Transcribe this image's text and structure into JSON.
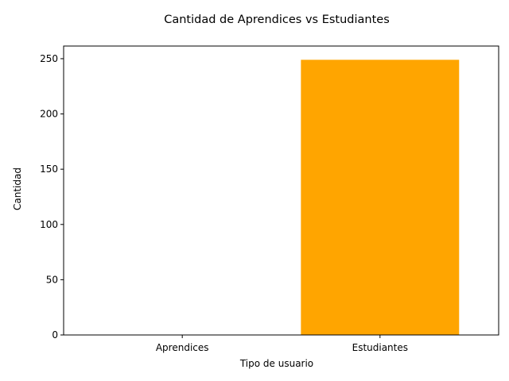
{
  "chart_data": {
    "type": "bar",
    "title": "Cantidad de Aprendices vs Estudiantes",
    "xlabel": "Tipo de usuario",
    "ylabel": "Cantidad",
    "categories": [
      "Aprendices",
      "Estudiantes"
    ],
    "values": [
      0,
      249
    ],
    "bar_color": "#FFA500",
    "ylim": [
      0,
      261.45
    ],
    "yticks": [
      0,
      50,
      100,
      150,
      200,
      250
    ],
    "grid": false,
    "legend": "none"
  }
}
